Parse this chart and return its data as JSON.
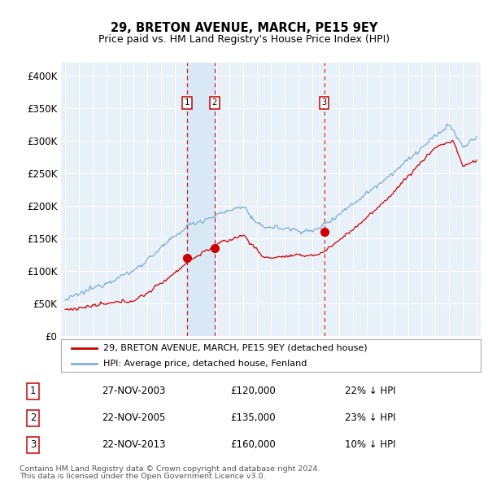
{
  "title": "29, BRETON AVENUE, MARCH, PE15 9EY",
  "subtitle": "Price paid vs. HM Land Registry's House Price Index (HPI)",
  "legend_line1": "29, BRETON AVENUE, MARCH, PE15 9EY (detached house)",
  "legend_line2": "HPI: Average price, detached house, Fenland",
  "footnote1": "Contains HM Land Registry data © Crown copyright and database right 2024.",
  "footnote2": "This data is licensed under the Open Government Licence v3.0.",
  "sale_color": "#cc0000",
  "hpi_color": "#7ab0d4",
  "shade_color": "#d8e8f5",
  "background_color": "#e8f0f8",
  "ylim": [
    0,
    420000
  ],
  "yticks": [
    0,
    50000,
    100000,
    150000,
    200000,
    250000,
    300000,
    350000,
    400000
  ],
  "ytick_labels": [
    "£0",
    "£50K",
    "£100K",
    "£150K",
    "£200K",
    "£250K",
    "£300K",
    "£350K",
    "£400K"
  ],
  "sale_dates": [
    2003.9,
    2005.9,
    2013.9
  ],
  "sale_prices": [
    120000,
    135000,
    160000
  ],
  "sale_labels": [
    "1",
    "2",
    "3"
  ],
  "sale_table": [
    [
      "1",
      "27-NOV-2003",
      "£120,000",
      "22% ↓ HPI"
    ],
    [
      "2",
      "22-NOV-2005",
      "£135,000",
      "23% ↓ HPI"
    ],
    [
      "3",
      "22-NOV-2013",
      "£160,000",
      "10% ↓ HPI"
    ]
  ]
}
